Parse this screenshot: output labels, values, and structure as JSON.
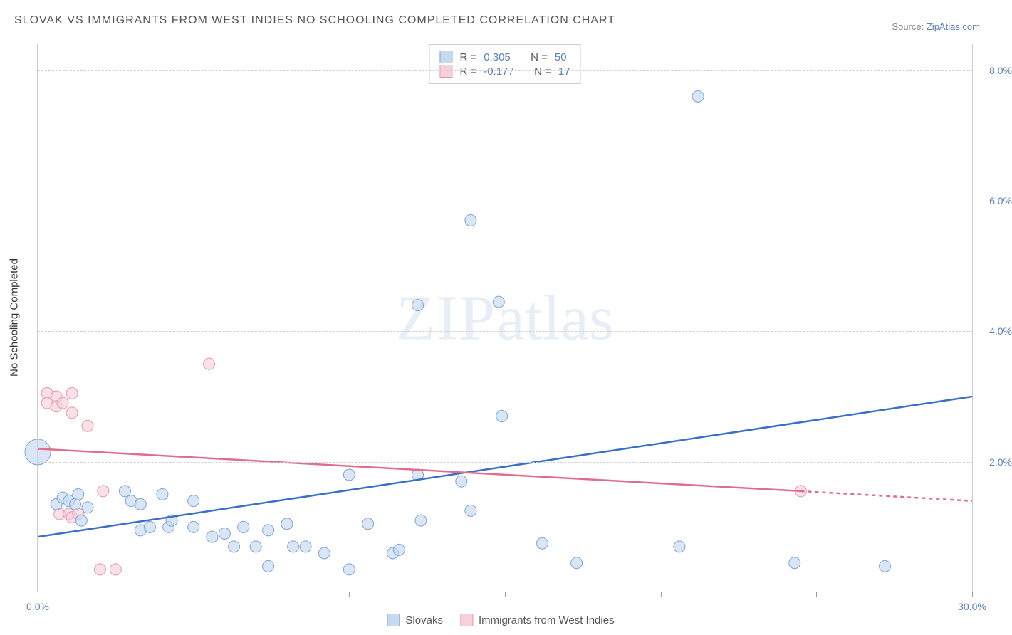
{
  "title": "SLOVAK VS IMMIGRANTS FROM WEST INDIES NO SCHOOLING COMPLETED CORRELATION CHART",
  "source_label": "Source:",
  "source_link": "ZipAtlas.com",
  "y_axis_label": "No Schooling Completed",
  "watermark_a": "ZIP",
  "watermark_b": "atlas",
  "chart": {
    "type": "scatter-with-trendlines",
    "xlim": [
      0,
      30
    ],
    "ylim": [
      0,
      8.4
    ],
    "x_ticks": [
      0,
      5,
      10,
      15,
      20,
      25,
      30
    ],
    "x_tick_labels": {
      "0": "0.0%",
      "30": "30.0%"
    },
    "y_ticks": [
      2,
      4,
      6,
      8
    ],
    "y_tick_labels": {
      "2": "2.0%",
      "4": "4.0%",
      "6": "6.0%",
      "8": "8.0%"
    },
    "background_color": "#ffffff",
    "grid_color": "#d0d0d0",
    "axis_color": "#cccccc",
    "tick_label_color": "#5b7fb8",
    "series": [
      {
        "name": "Slovaks",
        "fill": "#c6d9ef",
        "stroke": "#7ea3d4",
        "line_color": "#3a6fc7",
        "R": "0.305",
        "N": "50",
        "trend": {
          "x1": 0,
          "y1": 0.85,
          "x2": 30,
          "y2": 3.0
        },
        "points": [
          [
            0.0,
            2.15,
            18
          ],
          [
            0.6,
            1.35,
            8
          ],
          [
            0.8,
            1.45,
            8
          ],
          [
            1.0,
            1.4,
            8
          ],
          [
            1.2,
            1.35,
            8
          ],
          [
            1.3,
            1.5,
            8
          ],
          [
            1.6,
            1.3,
            8
          ],
          [
            1.4,
            1.1,
            8
          ],
          [
            2.8,
            1.55,
            8
          ],
          [
            3.0,
            1.4,
            8
          ],
          [
            3.3,
            0.95,
            8
          ],
          [
            3.3,
            1.35,
            8
          ],
          [
            3.6,
            1.0,
            8
          ],
          [
            4.0,
            1.5,
            8
          ],
          [
            4.2,
            1.0,
            8
          ],
          [
            4.3,
            1.1,
            8
          ],
          [
            5.0,
            1.0,
            8
          ],
          [
            5.0,
            1.4,
            8
          ],
          [
            5.6,
            0.85,
            8
          ],
          [
            6.0,
            0.9,
            8
          ],
          [
            6.3,
            0.7,
            8
          ],
          [
            6.6,
            1.0,
            8
          ],
          [
            7.0,
            0.7,
            8
          ],
          [
            7.4,
            0.95,
            8
          ],
          [
            7.4,
            0.4,
            8
          ],
          [
            8.0,
            1.05,
            8
          ],
          [
            8.2,
            0.7,
            8
          ],
          [
            8.6,
            0.7,
            8
          ],
          [
            9.2,
            0.6,
            8
          ],
          [
            10.0,
            1.8,
            8
          ],
          [
            10.0,
            0.35,
            8
          ],
          [
            10.6,
            1.05,
            8
          ],
          [
            11.4,
            0.6,
            8
          ],
          [
            11.6,
            0.65,
            8
          ],
          [
            12.2,
            1.8,
            8
          ],
          [
            12.2,
            4.4,
            8
          ],
          [
            12.3,
            1.1,
            8
          ],
          [
            13.6,
            1.7,
            8
          ],
          [
            13.9,
            5.7,
            8
          ],
          [
            13.9,
            1.25,
            8
          ],
          [
            14.8,
            4.45,
            8
          ],
          [
            14.9,
            2.7,
            8
          ],
          [
            16.2,
            0.75,
            8
          ],
          [
            17.3,
            0.45,
            8
          ],
          [
            20.6,
            0.7,
            8
          ],
          [
            21.2,
            7.6,
            8
          ],
          [
            24.3,
            0.45,
            8
          ],
          [
            27.2,
            0.4,
            8
          ]
        ]
      },
      {
        "name": "Immigrants from West Indies",
        "fill": "#f8d0da",
        "stroke": "#e695ab",
        "line_color": "#e06d8e",
        "R": "-0.177",
        "N": "17",
        "trend": {
          "x1": 0,
          "y1": 2.2,
          "x2_solid": 24.5,
          "y2_solid": 1.55,
          "x2": 30,
          "y2": 1.4
        },
        "points": [
          [
            0.3,
            3.05,
            8
          ],
          [
            0.3,
            2.9,
            8
          ],
          [
            0.6,
            3.0,
            8
          ],
          [
            0.6,
            2.85,
            8
          ],
          [
            0.8,
            2.9,
            8
          ],
          [
            1.1,
            3.05,
            8
          ],
          [
            1.1,
            2.75,
            8
          ],
          [
            0.7,
            1.2,
            8
          ],
          [
            1.0,
            1.2,
            8
          ],
          [
            1.1,
            1.15,
            8
          ],
          [
            1.3,
            1.2,
            8
          ],
          [
            1.6,
            2.55,
            8
          ],
          [
            2.1,
            1.55,
            8
          ],
          [
            2.0,
            0.35,
            8
          ],
          [
            2.5,
            0.35,
            8
          ],
          [
            5.5,
            3.5,
            8
          ],
          [
            24.5,
            1.55,
            8
          ]
        ]
      }
    ]
  },
  "correlation_box": {
    "label_R": "R =",
    "label_N": "N ="
  },
  "legend": {
    "series1_label": "Slovaks",
    "series2_label": "Immigrants from West Indies"
  }
}
